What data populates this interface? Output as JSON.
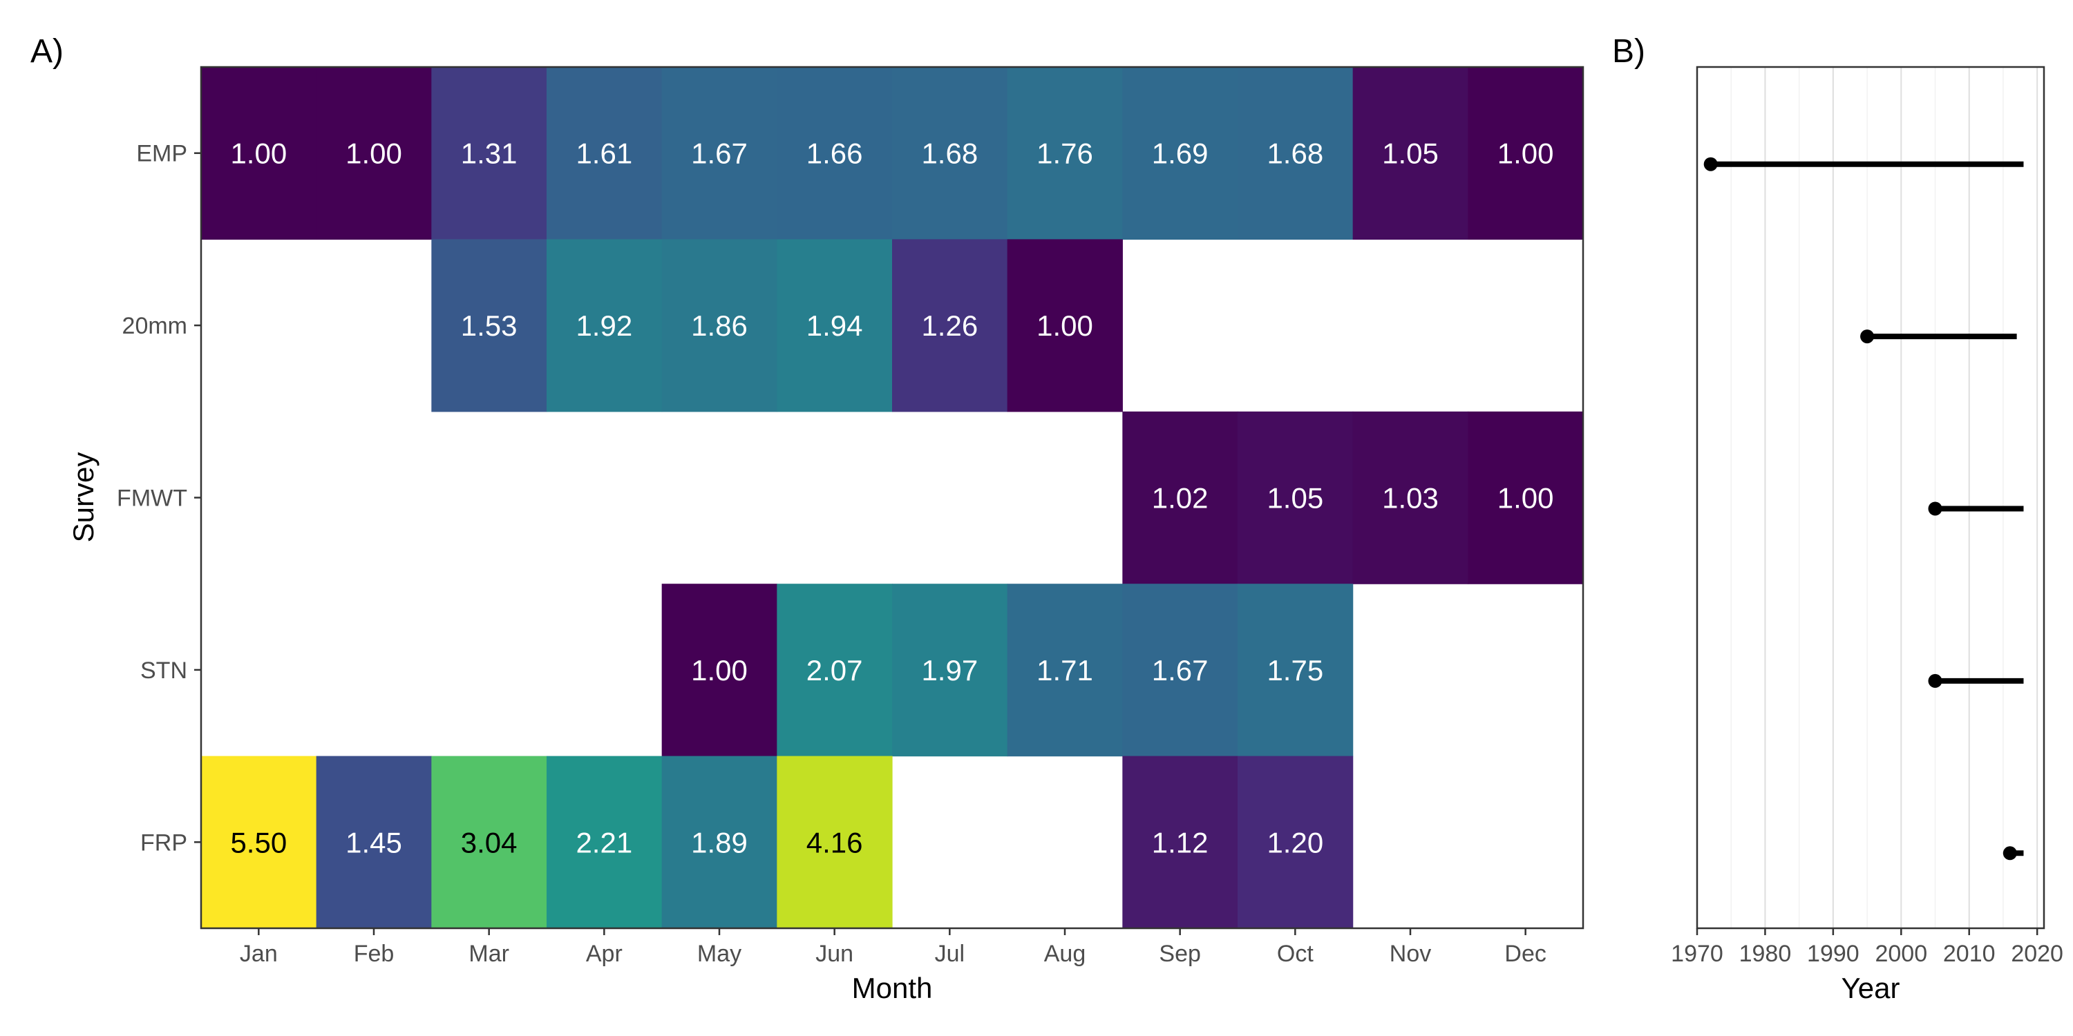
{
  "chart_data": [
    {
      "type": "heatmap",
      "panel_label": "A)",
      "xlabel": "Month",
      "ylabel": "Survey",
      "x_categories": [
        "Jan",
        "Feb",
        "Mar",
        "Apr",
        "May",
        "Jun",
        "Jul",
        "Aug",
        "Sep",
        "Oct",
        "Nov",
        "Dec"
      ],
      "y_categories": [
        "EMP",
        "20mm",
        "FMWT",
        "STN",
        "FRP"
      ],
      "color_scale": "viridis",
      "color_range": [
        1.0,
        5.5
      ],
      "cells": [
        {
          "survey": "EMP",
          "month": "Jan",
          "value": "1.00"
        },
        {
          "survey": "EMP",
          "month": "Feb",
          "value": "1.00"
        },
        {
          "survey": "EMP",
          "month": "Mar",
          "value": "1.31"
        },
        {
          "survey": "EMP",
          "month": "Apr",
          "value": "1.61"
        },
        {
          "survey": "EMP",
          "month": "May",
          "value": "1.67"
        },
        {
          "survey": "EMP",
          "month": "Jun",
          "value": "1.66"
        },
        {
          "survey": "EMP",
          "month": "Jul",
          "value": "1.68"
        },
        {
          "survey": "EMP",
          "month": "Aug",
          "value": "1.76"
        },
        {
          "survey": "EMP",
          "month": "Sep",
          "value": "1.69"
        },
        {
          "survey": "EMP",
          "month": "Oct",
          "value": "1.68"
        },
        {
          "survey": "EMP",
          "month": "Nov",
          "value": "1.05"
        },
        {
          "survey": "EMP",
          "month": "Dec",
          "value": "1.00"
        },
        {
          "survey": "20mm",
          "month": "Mar",
          "value": "1.53"
        },
        {
          "survey": "20mm",
          "month": "Apr",
          "value": "1.92"
        },
        {
          "survey": "20mm",
          "month": "May",
          "value": "1.86"
        },
        {
          "survey": "20mm",
          "month": "Jun",
          "value": "1.94"
        },
        {
          "survey": "20mm",
          "month": "Jul",
          "value": "1.26"
        },
        {
          "survey": "20mm",
          "month": "Aug",
          "value": "1.00"
        },
        {
          "survey": "FMWT",
          "month": "Sep",
          "value": "1.02"
        },
        {
          "survey": "FMWT",
          "month": "Oct",
          "value": "1.05"
        },
        {
          "survey": "FMWT",
          "month": "Nov",
          "value": "1.03"
        },
        {
          "survey": "FMWT",
          "month": "Dec",
          "value": "1.00"
        },
        {
          "survey": "STN",
          "month": "May",
          "value": "1.00"
        },
        {
          "survey": "STN",
          "month": "Jun",
          "value": "2.07"
        },
        {
          "survey": "STN",
          "month": "Jul",
          "value": "1.97"
        },
        {
          "survey": "STN",
          "month": "Aug",
          "value": "1.71"
        },
        {
          "survey": "STN",
          "month": "Sep",
          "value": "1.67"
        },
        {
          "survey": "STN",
          "month": "Oct",
          "value": "1.75"
        },
        {
          "survey": "FRP",
          "month": "Jan",
          "value": "5.50"
        },
        {
          "survey": "FRP",
          "month": "Feb",
          "value": "1.45"
        },
        {
          "survey": "FRP",
          "month": "Mar",
          "value": "3.04"
        },
        {
          "survey": "FRP",
          "month": "Apr",
          "value": "2.21"
        },
        {
          "survey": "FRP",
          "month": "May",
          "value": "1.89"
        },
        {
          "survey": "FRP",
          "month": "Jun",
          "value": "4.16"
        },
        {
          "survey": "FRP",
          "month": "Sep",
          "value": "1.12"
        },
        {
          "survey": "FRP",
          "month": "Oct",
          "value": "1.20"
        }
      ]
    },
    {
      "type": "range",
      "panel_label": "B)",
      "xlabel": "Year",
      "xlim": [
        1970,
        2021
      ],
      "x_ticks": [
        1970,
        1980,
        1990,
        2000,
        2010,
        2020
      ],
      "grid": true,
      "rows": [
        {
          "survey": "EMP",
          "start": 1972,
          "end": 2018
        },
        {
          "survey": "20mm",
          "start": 1995,
          "end": 2017
        },
        {
          "survey": "FMWT",
          "start": 2005,
          "end": 2018
        },
        {
          "survey": "STN",
          "start": 2005,
          "end": 2018
        },
        {
          "survey": "FRP",
          "start": 2016,
          "end": 2018
        }
      ]
    }
  ]
}
